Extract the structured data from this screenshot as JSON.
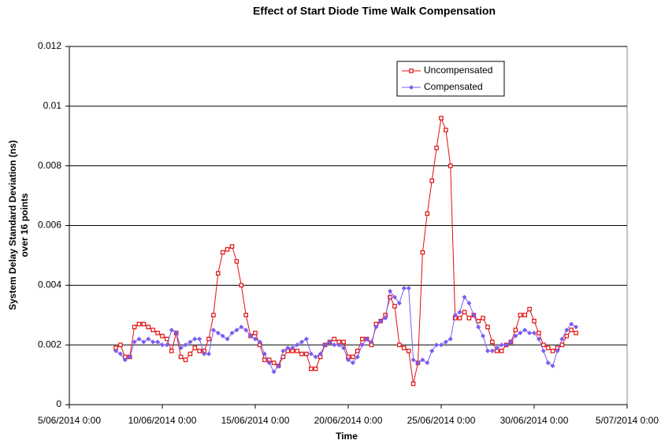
{
  "chart_data": {
    "type": "line",
    "title": "Effect of Start Diode Time Walk Compensation",
    "xlabel": "Time",
    "ylabel": [
      "System Delay Standard Deviation (ns)",
      "over 16 points"
    ],
    "xlim": [
      "2014-06-05T00:00",
      "2014-07-05T00:00"
    ],
    "xticks": [
      {
        "value": "2014-06-05T00:00",
        "label": "5/06/2014 0:00"
      },
      {
        "value": "2014-06-10T00:00",
        "label": "10/06/2014 0:00"
      },
      {
        "value": "2014-06-15T00:00",
        "label": "15/06/2014 0:00"
      },
      {
        "value": "2014-06-20T00:00",
        "label": "20/06/2014 0:00"
      },
      {
        "value": "2014-06-25T00:00",
        "label": "25/06/2014 0:00"
      },
      {
        "value": "2014-06-30T00:00",
        "label": "30/06/2014 0:00"
      },
      {
        "value": "2014-07-05T00:00",
        "label": "5/07/2014 0:00"
      }
    ],
    "ylim": [
      0,
      0.012
    ],
    "yticks": [
      0,
      0.002,
      0.004,
      0.006,
      0.008,
      0.01,
      0.012
    ],
    "grid": true,
    "legend": "upper center",
    "x": [
      "2014-06-07T12:00",
      "2014-06-07T18:00",
      "2014-06-08T00:00",
      "2014-06-08T06:00",
      "2014-06-08T12:00",
      "2014-06-08T18:00",
      "2014-06-09T00:00",
      "2014-06-09T06:00",
      "2014-06-09T12:00",
      "2014-06-09T18:00",
      "2014-06-10T00:00",
      "2014-06-10T06:00",
      "2014-06-10T12:00",
      "2014-06-10T18:00",
      "2014-06-11T00:00",
      "2014-06-11T06:00",
      "2014-06-11T12:00",
      "2014-06-11T18:00",
      "2014-06-12T00:00",
      "2014-06-12T06:00",
      "2014-06-12T12:00",
      "2014-06-12T18:00",
      "2014-06-13T00:00",
      "2014-06-13T06:00",
      "2014-06-13T12:00",
      "2014-06-13T18:00",
      "2014-06-14T00:00",
      "2014-06-14T06:00",
      "2014-06-14T12:00",
      "2014-06-14T18:00",
      "2014-06-15T00:00",
      "2014-06-15T06:00",
      "2014-06-15T12:00",
      "2014-06-15T18:00",
      "2014-06-16T00:00",
      "2014-06-16T06:00",
      "2014-06-16T12:00",
      "2014-06-16T18:00",
      "2014-06-17T00:00",
      "2014-06-17T06:00",
      "2014-06-17T12:00",
      "2014-06-17T18:00",
      "2014-06-18T00:00",
      "2014-06-18T06:00",
      "2014-06-18T12:00",
      "2014-06-18T18:00",
      "2014-06-19T00:00",
      "2014-06-19T06:00",
      "2014-06-19T12:00",
      "2014-06-19T18:00",
      "2014-06-20T00:00",
      "2014-06-20T06:00",
      "2014-06-20T12:00",
      "2014-06-20T18:00",
      "2014-06-21T00:00",
      "2014-06-21T06:00",
      "2014-06-21T12:00",
      "2014-06-21T18:00",
      "2014-06-22T00:00",
      "2014-06-22T06:00",
      "2014-06-22T12:00",
      "2014-06-22T18:00",
      "2014-06-23T00:00",
      "2014-06-23T06:00",
      "2014-06-23T12:00",
      "2014-06-23T18:00",
      "2014-06-24T00:00",
      "2014-06-24T06:00",
      "2014-06-24T12:00",
      "2014-06-24T18:00",
      "2014-06-25T00:00",
      "2014-06-25T06:00",
      "2014-06-25T12:00",
      "2014-06-25T18:00",
      "2014-06-26T00:00",
      "2014-06-26T06:00",
      "2014-06-26T12:00",
      "2014-06-26T18:00",
      "2014-06-27T00:00",
      "2014-06-27T06:00",
      "2014-06-27T12:00",
      "2014-06-27T18:00",
      "2014-06-28T00:00",
      "2014-06-28T06:00",
      "2014-06-28T12:00",
      "2014-06-28T18:00",
      "2014-06-29T00:00",
      "2014-06-29T06:00",
      "2014-06-29T12:00",
      "2014-06-29T18:00",
      "2014-06-30T00:00",
      "2014-06-30T06:00",
      "2014-06-30T12:00",
      "2014-06-30T18:00",
      "2014-07-01T00:00",
      "2014-07-01T06:00",
      "2014-07-01T12:00",
      "2014-07-01T18:00",
      "2014-07-02T00:00",
      "2014-07-02T06:00"
    ],
    "series": [
      {
        "name": "Uncompensated",
        "color": "#e01010",
        "marker": "square",
        "values": [
          0.0019,
          0.002,
          0.0016,
          0.0016,
          0.0026,
          0.0027,
          0.0027,
          0.0026,
          0.0025,
          0.0024,
          0.0023,
          0.0022,
          0.0018,
          0.0024,
          0.0016,
          0.0015,
          0.0017,
          0.0019,
          0.0018,
          0.0018,
          0.0022,
          0.003,
          0.0044,
          0.0051,
          0.0052,
          0.0053,
          0.0048,
          0.004,
          0.003,
          0.0023,
          0.0024,
          0.002,
          0.0015,
          0.0015,
          0.0014,
          0.0013,
          0.0016,
          0.0018,
          0.0018,
          0.0018,
          0.0017,
          0.0017,
          0.0012,
          0.0012,
          0.0016,
          0.002,
          0.0021,
          0.0022,
          0.0021,
          0.0021,
          0.0016,
          0.0016,
          0.0018,
          0.0022,
          0.0022,
          0.002,
          0.0027,
          0.0028,
          0.003,
          0.0036,
          0.0033,
          0.002,
          0.0019,
          0.0018,
          0.0007,
          0.0014,
          0.0051,
          0.0064,
          0.0075,
          0.0086,
          0.0096,
          0.0092,
          0.008,
          0.0029,
          0.0029,
          0.0031,
          0.0029,
          0.003,
          0.0028,
          0.0029,
          0.0026,
          0.0021,
          0.0018,
          0.0018,
          0.002,
          0.0021,
          0.0025,
          0.003,
          0.003,
          0.0032,
          0.0028,
          0.0024,
          0.002,
          0.0019,
          0.0018,
          0.0019,
          0.002,
          0.0023,
          0.0025,
          0.0024
        ]
      },
      {
        "name": "Compensated",
        "color": "#7b5cf0",
        "marker": "diamond",
        "values": [
          0.0018,
          0.0017,
          0.0015,
          0.0016,
          0.0021,
          0.0022,
          0.0021,
          0.0022,
          0.0021,
          0.0021,
          0.002,
          0.002,
          0.0025,
          0.0024,
          0.0019,
          0.002,
          0.0021,
          0.0022,
          0.0022,
          0.0017,
          0.0017,
          0.0025,
          0.0024,
          0.0023,
          0.0022,
          0.0024,
          0.0025,
          0.0026,
          0.0025,
          0.0023,
          0.0022,
          0.0021,
          0.0017,
          0.0014,
          0.0011,
          0.0013,
          0.0018,
          0.0019,
          0.0019,
          0.002,
          0.0021,
          0.0022,
          0.0017,
          0.0016,
          0.0017,
          0.002,
          0.0021,
          0.002,
          0.002,
          0.0019,
          0.0015,
          0.0014,
          0.0016,
          0.002,
          0.0022,
          0.0021,
          0.0026,
          0.0028,
          0.0029,
          0.0038,
          0.0036,
          0.0034,
          0.0039,
          0.0039,
          0.0015,
          0.0014,
          0.0015,
          0.0014,
          0.0018,
          0.002,
          0.002,
          0.0021,
          0.0022,
          0.003,
          0.0031,
          0.0036,
          0.0034,
          0.003,
          0.0026,
          0.0023,
          0.0018,
          0.0018,
          0.0019,
          0.002,
          0.002,
          0.0021,
          0.0023,
          0.0024,
          0.0025,
          0.0024,
          0.0024,
          0.0022,
          0.0018,
          0.0014,
          0.0013,
          0.0018,
          0.0022,
          0.0025,
          0.0027,
          0.0026
        ]
      }
    ]
  }
}
